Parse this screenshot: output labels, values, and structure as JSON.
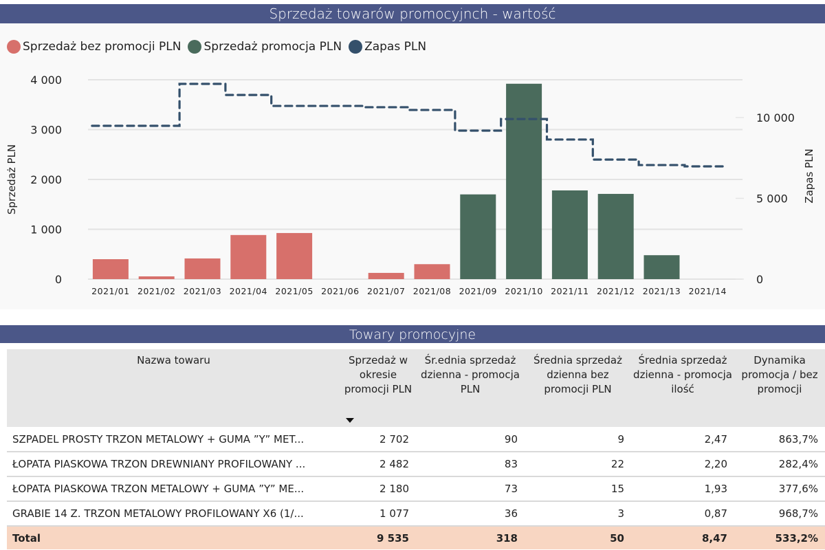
{
  "chart_section": {
    "title": "Sprzedaż towarów promocyjnch - wartość",
    "legend": [
      {
        "label": "Sprzedaż bez promocji PLN",
        "color": "#d7706b"
      },
      {
        "label": "Sprzedaż promocja PLN",
        "color": "#4a6b5c"
      },
      {
        "label": "Zapas PLN",
        "color": "#34506b"
      }
    ]
  },
  "chart_data": {
    "type": "bar",
    "title": "Sprzedaż towarów promocyjnch - wartość",
    "categories": [
      "2021/01",
      "2021/02",
      "2021/03",
      "2021/04",
      "2021/05",
      "2021/06",
      "2021/07",
      "2021/08",
      "2021/09",
      "2021/10",
      "2021/11",
      "2021/12",
      "2021/13",
      "2021/14"
    ],
    "series": [
      {
        "name": "Sprzedaż bez promocji PLN",
        "type": "bar",
        "axis": "left",
        "color": "#d7706b",
        "values": [
          400,
          55,
          415,
          885,
          925,
          0,
          125,
          300,
          0,
          0,
          0,
          0,
          0,
          0
        ]
      },
      {
        "name": "Sprzedaż promocja PLN",
        "type": "bar",
        "axis": "left",
        "color": "#4a6b5c",
        "values": [
          0,
          0,
          0,
          0,
          0,
          0,
          0,
          0,
          1700,
          3920,
          1780,
          1710,
          480,
          0
        ]
      },
      {
        "name": "Zapas PLN",
        "type": "line",
        "style": "dashed-step",
        "axis": "right",
        "color": "#34506b",
        "values": [
          9490,
          9490,
          12085,
          11400,
          10720,
          10720,
          10640,
          10470,
          9190,
          9910,
          8640,
          7400,
          7060,
          6980
        ]
      }
    ],
    "ylabel": "Sprzedaż PLN",
    "ylim": [
      0,
      4000
    ],
    "yticks": [
      0,
      1000,
      2000,
      3000,
      4000
    ],
    "ytick_labels": [
      "0",
      "1 000",
      "2 000",
      "3 000",
      "4 000"
    ],
    "y2label": "Zapas PLN",
    "y2lim": [
      0,
      12340
    ],
    "y2ticks": [
      0,
      5000,
      10000
    ],
    "y2tick_labels": [
      "0",
      "5 000",
      "10 000"
    ],
    "xlabel": "",
    "grid": true,
    "legend_position": "top-left"
  },
  "table_section": {
    "title": "Towary promocyjne",
    "columns": [
      "Nazwa towaru",
      "Sprzedaż w okresie promocji PLN",
      "Śr.ednia sprzedaż dzienna - promocja PLN",
      "Średnia sprzedaż dzienna bez promocji PLN",
      "Średnia sprzedaż dzienna - promocja ilość",
      "Dynamika promocja / bez promocji"
    ],
    "sorted_column": 1,
    "rows": [
      [
        "SZPADEL PROSTY TRZON METALOWY + GUMA ”Y” MET...",
        "2 702",
        "90",
        "9",
        "2,47",
        "863,7%"
      ],
      [
        "ŁOPATA PIASKOWA TRZON DREWNIANY PROFILOWANY ...",
        "2 482",
        "83",
        "22",
        "2,20",
        "282,4%"
      ],
      [
        "ŁOPATA PIASKOWA TRZON METALOWY + GUMA ”Y” ME...",
        "2 180",
        "73",
        "15",
        "1,93",
        "377,6%"
      ],
      [
        "GRABIE 14 Z. TRZON METALOWY PROFILOWANY X6 (1/...",
        "1 077",
        "36",
        "3",
        "0,87",
        "968,7%"
      ]
    ],
    "total": [
      "Total",
      "9 535",
      "318",
      "50",
      "8,47",
      "533,2%"
    ]
  }
}
